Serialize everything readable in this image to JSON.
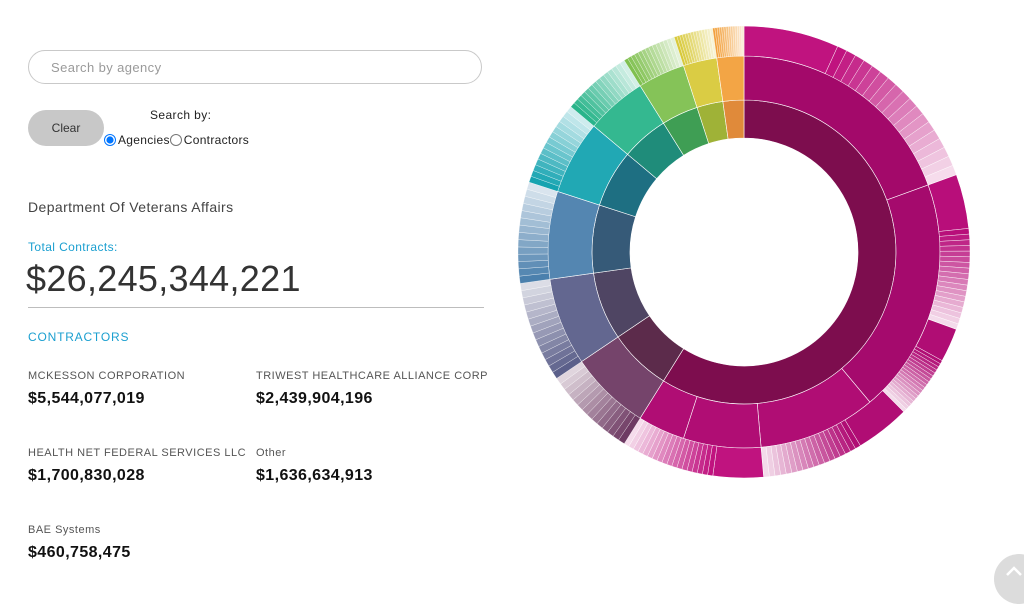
{
  "search": {
    "placeholder": "Search by agency",
    "value": ""
  },
  "controls": {
    "clear_label": "Clear",
    "search_by_label": "Search by:",
    "options": [
      {
        "label": "Agencies",
        "selected": true
      },
      {
        "label": "Contractors",
        "selected": false
      }
    ]
  },
  "agency": {
    "name": "Department Of Veterans Affairs",
    "total_label": "Total Contracts:",
    "total_value": "$26,245,344,221"
  },
  "contractors": {
    "heading": "CONTRACTORS",
    "items": [
      {
        "name": "MCKESSON CORPORATION",
        "amount": "$5,544,077,019"
      },
      {
        "name": "TRIWEST HEALTHCARE ALLIANCE CORP",
        "amount": "$2,439,904,196"
      },
      {
        "name": "HEALTH NET FEDERAL SERVICES LLC",
        "amount": "$1,700,830,028"
      },
      {
        "name": "Other",
        "amount": "$1,636,634,913"
      },
      {
        "name": "BAE Systems",
        "amount": "$460,758,475"
      }
    ]
  },
  "sunburst": {
    "highlight_color": "#a3096a",
    "inner_segment_colors": [
      "#7d0d4e",
      "#5c2b4b",
      "#4f4563",
      "#365a78",
      "#1e6f82",
      "#1f8c7a",
      "#3f9e54",
      "#9fb237",
      "#e08a3a"
    ],
    "ring_colors": [
      "#b00d74",
      "#6e3a63",
      "#5b5f8a",
      "#4b80ad",
      "#15a3b0",
      "#29b48a",
      "#7fc04f",
      "#d8c93a",
      "#f2a03b"
    ]
  },
  "icons": {
    "scroll_top": "chevron-up-icon"
  }
}
